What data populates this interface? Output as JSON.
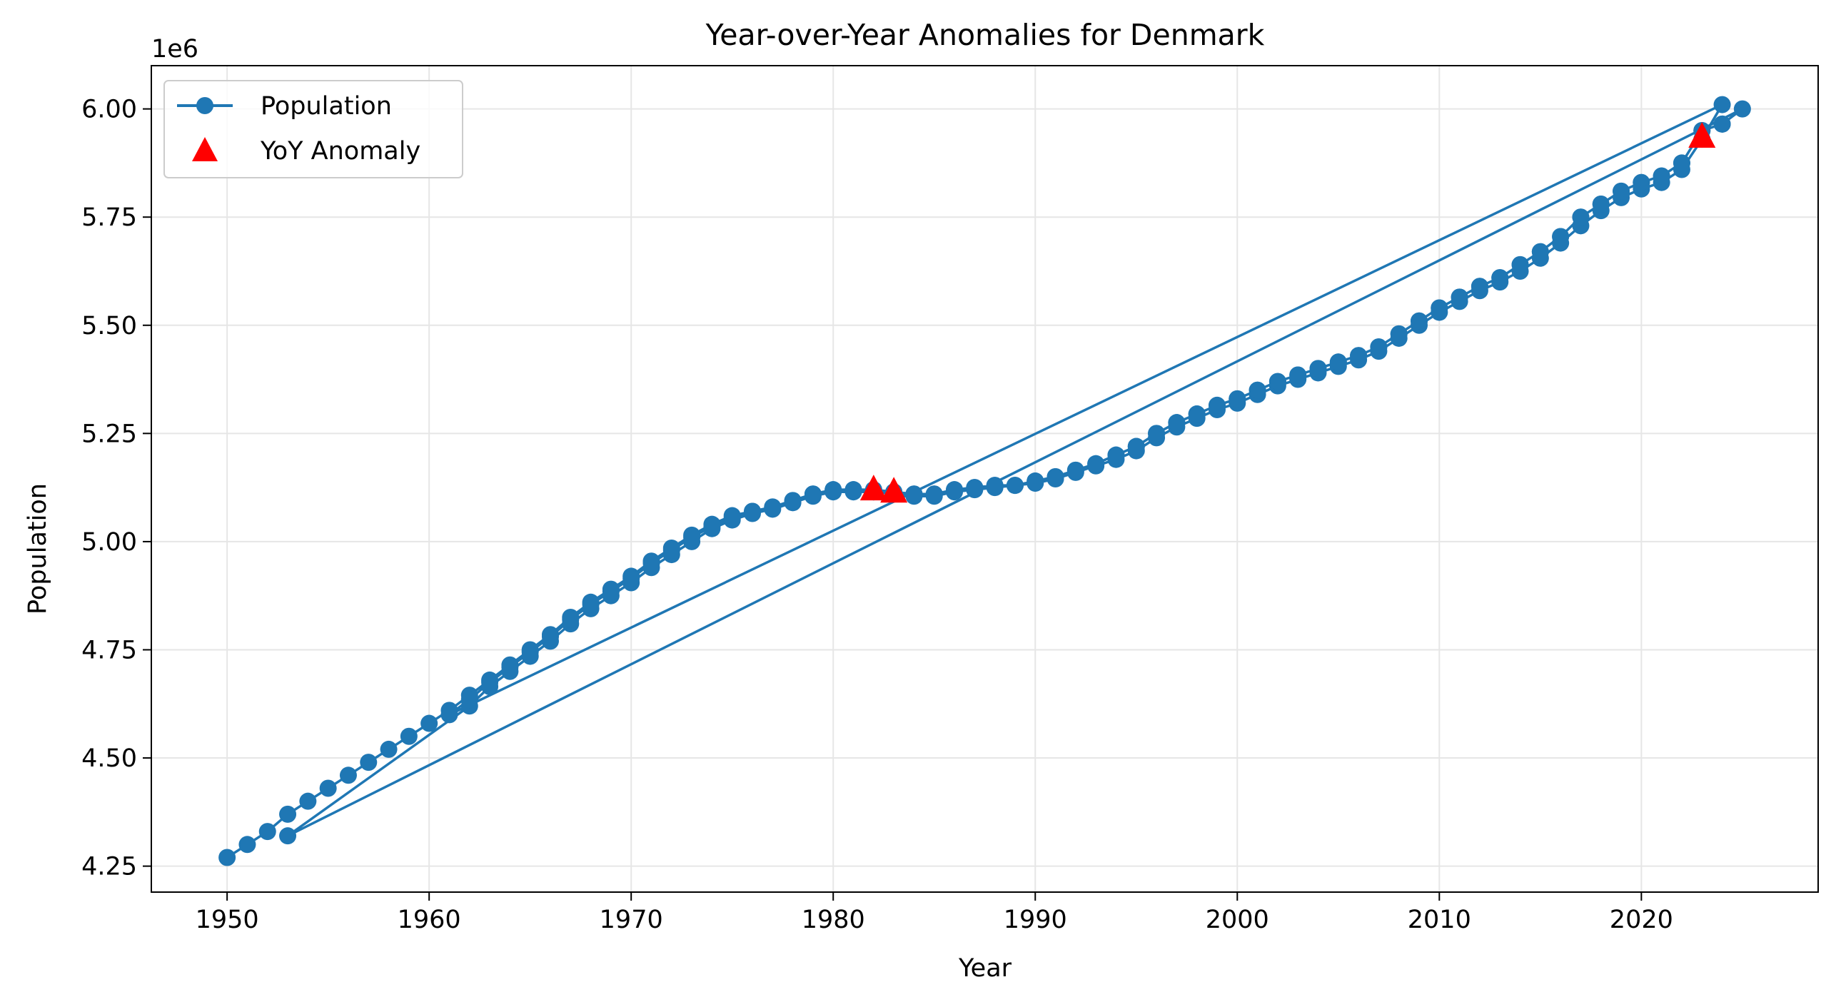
{
  "chart_data": {
    "type": "line",
    "title": "Year-over-Year Anomalies for Denmark",
    "xlabel": "Year",
    "ylabel": "Population",
    "y_offset_label": "1e6",
    "xlim": [
      1946.25,
      2028.75
    ],
    "ylim": [
      4.19,
      6.1
    ],
    "x_ticks": [
      1950,
      1960,
      1970,
      1980,
      1990,
      2000,
      2010,
      2020
    ],
    "y_ticks": [
      4.25,
      4.5,
      4.75,
      5.0,
      5.25,
      5.5,
      5.75,
      6.0
    ],
    "y_tick_labels": [
      "4.25",
      "4.50",
      "4.75",
      "5.00",
      "5.25",
      "5.50",
      "5.75",
      "6.00"
    ],
    "grid": true,
    "legend_position": "upper left",
    "colors": {
      "line": "#1f77b4",
      "anomaly": "#ff0000",
      "grid": "#e6e6e6"
    },
    "series": [
      {
        "name": "Population",
        "marker": "circle",
        "line": true,
        "x": [
          1950,
          1951,
          1952,
          1953,
          1954,
          1955,
          1956,
          1957,
          1958,
          1959,
          1960,
          1961,
          1962,
          1963,
          1964,
          1965,
          1966,
          1967,
          1968,
          1969,
          1970,
          1971,
          1972,
          1973,
          1974,
          1975,
          1976,
          1977,
          1978,
          1979,
          1980,
          1981,
          1982,
          1983,
          1984,
          1985,
          1986,
          1987,
          1988,
          1989,
          1990,
          1991,
          1992,
          1993,
          1994,
          1995,
          1996,
          1997,
          1998,
          1999,
          2000,
          2001,
          2002,
          2003,
          2004,
          2005,
          2006,
          2007,
          2008,
          2009,
          2010,
          2011,
          2012,
          2013,
          2014,
          2015,
          2016,
          2017,
          2018,
          2019,
          2020,
          2021,
          2022,
          2023,
          2024,
          2025,
          1953,
          1962,
          1963,
          1964,
          1965,
          1966,
          1967,
          1968,
          1969,
          1970,
          1971,
          1972,
          1973,
          1974,
          1975,
          1976,
          1977,
          1978,
          1979,
          1980,
          1981,
          1982,
          1983,
          1984,
          1985,
          1986,
          1987,
          1988,
          1989,
          1990,
          1991,
          1992,
          1993,
          1994,
          1995,
          1996,
          1997,
          1998,
          1999,
          2000,
          2001,
          2002,
          2003,
          2004,
          2005,
          2006,
          2007,
          2008,
          2009,
          2010,
          2011,
          2012,
          2013,
          2014,
          2015,
          2016,
          2017,
          2018,
          2019,
          2020,
          2021,
          2022,
          2023,
          2024,
          1961,
          1962,
          1963,
          1964,
          1965,
          1966,
          1967,
          1968,
          1969,
          1970,
          1971,
          1972,
          1973,
          1974,
          1975,
          1976,
          1977,
          1978,
          1979,
          1980,
          1981,
          1982,
          1983,
          1984,
          1985,
          1986,
          1987,
          1988,
          1989,
          1990,
          1991,
          1992,
          1993,
          1994,
          1995,
          1996,
          1997,
          1998,
          1999,
          2000,
          2001,
          2002,
          2003,
          2004,
          2005,
          2006,
          2007,
          2008,
          2009,
          2010,
          2011,
          2012,
          2013,
          2014,
          2015,
          2016,
          2017,
          2018,
          2019,
          2020,
          2021,
          2022,
          2023,
          2024
        ],
        "y": [
          4.27,
          4.3,
          4.33,
          4.37,
          4.4,
          4.43,
          4.46,
          4.49,
          4.52,
          4.55,
          4.58,
          4.61,
          4.645,
          4.68,
          4.715,
          4.75,
          4.785,
          4.825,
          4.86,
          4.89,
          4.92,
          4.955,
          4.985,
          5.015,
          5.04,
          5.06,
          5.07,
          5.08,
          5.095,
          5.11,
          5.12,
          5.12,
          5.12,
          5.115,
          5.11,
          5.11,
          5.12,
          5.125,
          5.13,
          5.13,
          5.14,
          5.15,
          5.165,
          5.18,
          5.2,
          5.22,
          5.25,
          5.275,
          5.295,
          5.315,
          5.33,
          5.35,
          5.37,
          5.385,
          5.4,
          5.415,
          5.43,
          5.45,
          5.48,
          5.51,
          5.54,
          5.565,
          5.59,
          5.61,
          5.64,
          5.67,
          5.705,
          5.75,
          5.78,
          5.81,
          5.83,
          5.845,
          5.875,
          5.95,
          5.965,
          6.0,
          4.32,
          4.62,
          4.665,
          4.7,
          4.735,
          4.77,
          4.81,
          4.845,
          4.875,
          4.905,
          4.94,
          4.97,
          5.0,
          5.03,
          5.05,
          5.065,
          5.075,
          5.09,
          5.105,
          5.115,
          5.115,
          5.115,
          5.11,
          5.105,
          5.105,
          5.115,
          5.12,
          5.125,
          5.13,
          5.135,
          5.145,
          5.16,
          5.175,
          5.19,
          5.21,
          5.24,
          5.265,
          5.285,
          5.305,
          5.32,
          5.34,
          5.36,
          5.375,
          5.39,
          5.405,
          5.42,
          5.44,
          5.47,
          5.5,
          5.53,
          5.555,
          5.58,
          5.6,
          5.625,
          5.655,
          5.69,
          5.73,
          5.765,
          5.795,
          5.815,
          5.83,
          5.86,
          5.93,
          6.01,
          4.6,
          4.635,
          4.675,
          4.71,
          4.745,
          4.78,
          4.82,
          4.855,
          4.885,
          4.915,
          4.95,
          4.98,
          5.01,
          5.035,
          5.055,
          5.07,
          5.08,
          5.095,
          5.11,
          5.12,
          5.12,
          5.12,
          5.115,
          5.11,
          5.11,
          5.12,
          5.125,
          5.13,
          5.13,
          5.14,
          5.15,
          5.165,
          5.18,
          5.2,
          5.22,
          5.25,
          5.275,
          5.295,
          5.315,
          5.33,
          5.35,
          5.37,
          5.385,
          5.4,
          5.415,
          5.43,
          5.45,
          5.48,
          5.51,
          5.54,
          5.565,
          5.59,
          5.61,
          5.64,
          5.67,
          5.705,
          5.75,
          5.78,
          5.81,
          5.83,
          5.845,
          5.875,
          5.95,
          5.965
        ]
      },
      {
        "name": "YoY Anomaly",
        "marker": "triangle",
        "line": false,
        "x": [
          1982,
          1983,
          2023
        ],
        "y": [
          5.12,
          5.115,
          5.935
        ]
      }
    ]
  }
}
